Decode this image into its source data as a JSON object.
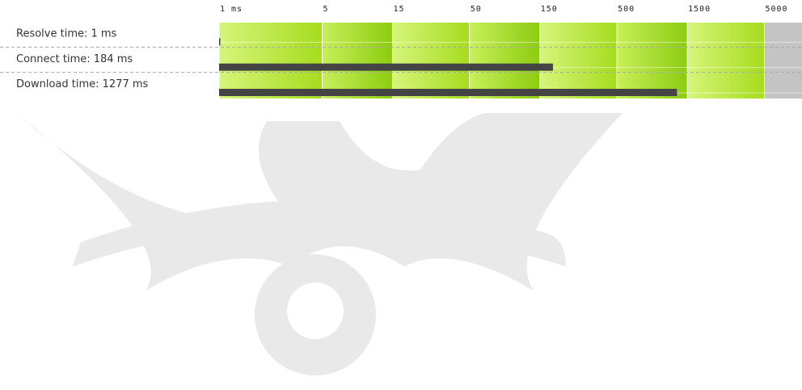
{
  "chart_data": {
    "type": "bar",
    "orientation": "horizontal",
    "categories": [
      "Resolve time: 1 ms",
      "Connect time: 184 ms",
      "Download time: 1277 ms"
    ],
    "values": [
      1,
      184,
      1277
    ],
    "color": "#444444",
    "xscale": "log",
    "xlim": [
      1,
      9000
    ],
    "xticks": [
      {
        "value": 1,
        "label": "1 ms"
      },
      5,
      15,
      50,
      150,
      500,
      1500,
      5000
    ]
  }
}
